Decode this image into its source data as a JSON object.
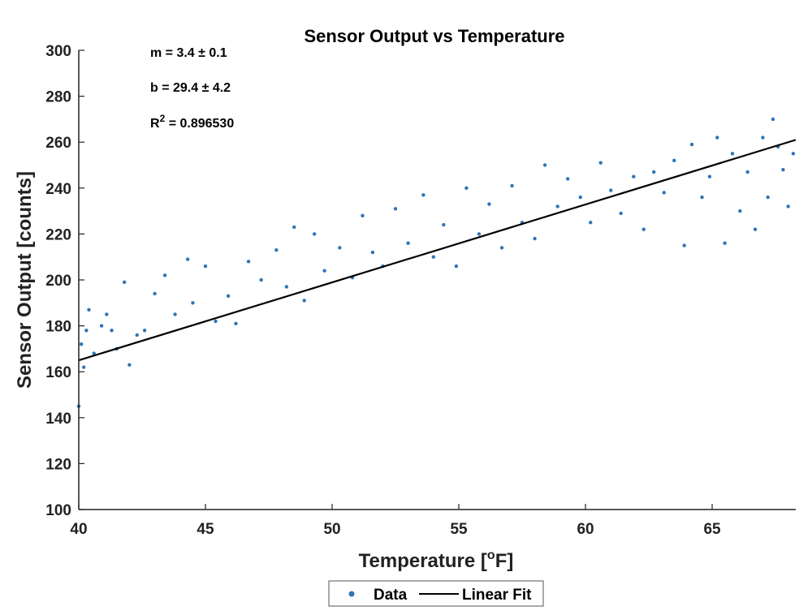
{
  "chart_data": {
    "type": "scatter",
    "title": "Sensor Output vs Temperature",
    "xlabel": "Temperature [",
    "xlabel_sup": "o",
    "xlabel_end": "F]",
    "ylabel": "Sensor Output [counts]",
    "xlim": [
      40,
      68.3
    ],
    "ylim": [
      100,
      300
    ],
    "x_ticks": [
      40,
      45,
      50,
      55,
      60,
      65
    ],
    "y_ticks": [
      100,
      120,
      140,
      160,
      180,
      200,
      220,
      240,
      260,
      280,
      300
    ],
    "grid": false,
    "legend_position": "bottom-center",
    "annotations": {
      "slope": "m = 3.4 ± 0.1",
      "intercept": "b = 29.4 ± 4.2",
      "r2_prefix": "R",
      "r2_sup": "2",
      "r2_value": " = 0.896530"
    },
    "series": [
      {
        "name": "Data",
        "kind": "points",
        "color": "#2e75b6",
        "sample_points": [
          {
            "x": 40.0,
            "y": 145
          },
          {
            "x": 40.1,
            "y": 172
          },
          {
            "x": 40.2,
            "y": 162
          },
          {
            "x": 40.3,
            "y": 178
          },
          {
            "x": 40.4,
            "y": 187
          },
          {
            "x": 40.6,
            "y": 168
          },
          {
            "x": 40.9,
            "y": 180
          },
          {
            "x": 41.1,
            "y": 185
          },
          {
            "x": 41.3,
            "y": 178
          },
          {
            "x": 41.5,
            "y": 170
          },
          {
            "x": 41.8,
            "y": 199
          },
          {
            "x": 42.0,
            "y": 163
          },
          {
            "x": 42.3,
            "y": 176
          },
          {
            "x": 42.6,
            "y": 178
          },
          {
            "x": 43.0,
            "y": 194
          },
          {
            "x": 43.4,
            "y": 202
          },
          {
            "x": 43.8,
            "y": 185
          },
          {
            "x": 44.3,
            "y": 209
          },
          {
            "x": 44.5,
            "y": 190
          },
          {
            "x": 45.0,
            "y": 206
          },
          {
            "x": 45.4,
            "y": 182
          },
          {
            "x": 45.9,
            "y": 193
          },
          {
            "x": 46.2,
            "y": 181
          },
          {
            "x": 46.7,
            "y": 208
          },
          {
            "x": 47.2,
            "y": 200
          },
          {
            "x": 47.8,
            "y": 213
          },
          {
            "x": 48.2,
            "y": 197
          },
          {
            "x": 48.5,
            "y": 223
          },
          {
            "x": 48.9,
            "y": 191
          },
          {
            "x": 49.3,
            "y": 220
          },
          {
            "x": 49.7,
            "y": 204
          },
          {
            "x": 50.3,
            "y": 214
          },
          {
            "x": 50.8,
            "y": 201
          },
          {
            "x": 51.2,
            "y": 228
          },
          {
            "x": 51.6,
            "y": 212
          },
          {
            "x": 52.0,
            "y": 206
          },
          {
            "x": 52.5,
            "y": 231
          },
          {
            "x": 53.0,
            "y": 216
          },
          {
            "x": 53.6,
            "y": 237
          },
          {
            "x": 54.0,
            "y": 210
          },
          {
            "x": 54.4,
            "y": 224
          },
          {
            "x": 54.9,
            "y": 206
          },
          {
            "x": 55.3,
            "y": 240
          },
          {
            "x": 55.8,
            "y": 220
          },
          {
            "x": 56.2,
            "y": 233
          },
          {
            "x": 56.7,
            "y": 214
          },
          {
            "x": 57.1,
            "y": 241
          },
          {
            "x": 57.5,
            "y": 225
          },
          {
            "x": 58.0,
            "y": 218
          },
          {
            "x": 58.4,
            "y": 250
          },
          {
            "x": 58.9,
            "y": 232
          },
          {
            "x": 59.3,
            "y": 244
          },
          {
            "x": 59.8,
            "y": 236
          },
          {
            "x": 60.2,
            "y": 225
          },
          {
            "x": 60.6,
            "y": 251
          },
          {
            "x": 61.0,
            "y": 239
          },
          {
            "x": 61.4,
            "y": 229
          },
          {
            "x": 61.9,
            "y": 245
          },
          {
            "x": 62.3,
            "y": 222
          },
          {
            "x": 62.7,
            "y": 247
          },
          {
            "x": 63.1,
            "y": 238
          },
          {
            "x": 63.5,
            "y": 252
          },
          {
            "x": 63.9,
            "y": 215
          },
          {
            "x": 64.2,
            "y": 259
          },
          {
            "x": 64.6,
            "y": 236
          },
          {
            "x": 64.9,
            "y": 245
          },
          {
            "x": 65.2,
            "y": 262
          },
          {
            "x": 65.5,
            "y": 216
          },
          {
            "x": 65.8,
            "y": 255
          },
          {
            "x": 66.1,
            "y": 230
          },
          {
            "x": 66.4,
            "y": 247
          },
          {
            "x": 66.7,
            "y": 222
          },
          {
            "x": 67.0,
            "y": 262
          },
          {
            "x": 67.2,
            "y": 236
          },
          {
            "x": 67.4,
            "y": 270
          },
          {
            "x": 67.6,
            "y": 258
          },
          {
            "x": 67.8,
            "y": 248
          },
          {
            "x": 68.0,
            "y": 232
          },
          {
            "x": 68.2,
            "y": 255
          }
        ]
      },
      {
        "name": "Linear Fit",
        "kind": "line",
        "color": "#000000",
        "x": [
          40,
          68.3
        ],
        "y": [
          165,
          261
        ]
      }
    ]
  }
}
